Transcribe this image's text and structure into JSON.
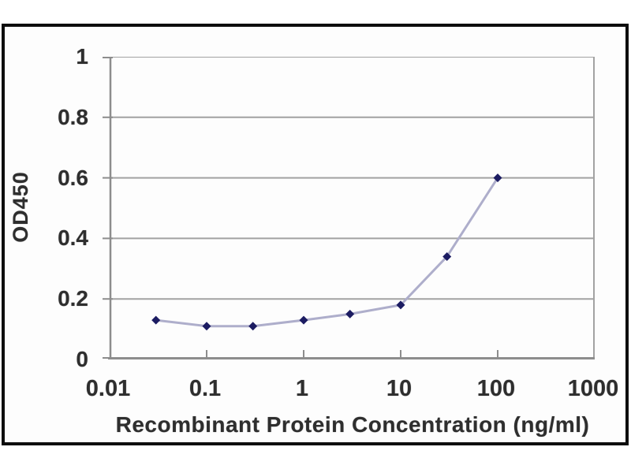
{
  "chart_data": {
    "type": "line",
    "title": "",
    "xlabel": "Recombinant Protein Concentration (ng/ml)",
    "ylabel": "OD450",
    "x_scale": "log",
    "xlim": [
      0.01,
      1000
    ],
    "ylim": [
      0,
      1
    ],
    "x_tick_values": [
      0.01,
      0.1,
      1,
      10,
      100,
      1000
    ],
    "x_tick_labels": [
      "0.01",
      "0.1",
      "1",
      "10",
      "100",
      "1000"
    ],
    "x_inner_tick_values": [
      0.1,
      1,
      10,
      100
    ],
    "y_tick_values": [
      0,
      0.2,
      0.4,
      0.6,
      0.8,
      1
    ],
    "y_tick_labels": [
      "0",
      "0.2",
      "0.4",
      "0.6",
      "0.8",
      "1"
    ],
    "grid": "horizontal",
    "legend": "none",
    "series": [
      {
        "name": "OD450",
        "x": [
          0.03,
          0.1,
          0.3,
          1,
          3,
          10,
          30,
          100
        ],
        "y": [
          0.13,
          0.11,
          0.11,
          0.13,
          0.15,
          0.18,
          0.34,
          0.6
        ],
        "marker": "diamond"
      }
    ],
    "colors": {
      "series_line": "#aeaecb",
      "marker": "#1c1c62",
      "grid": "#a2a2a2",
      "axis": "#8d8d8d",
      "text": "#2e2e2e",
      "frame_border": "#0d0d0d",
      "background": "#fdfdfd"
    }
  }
}
